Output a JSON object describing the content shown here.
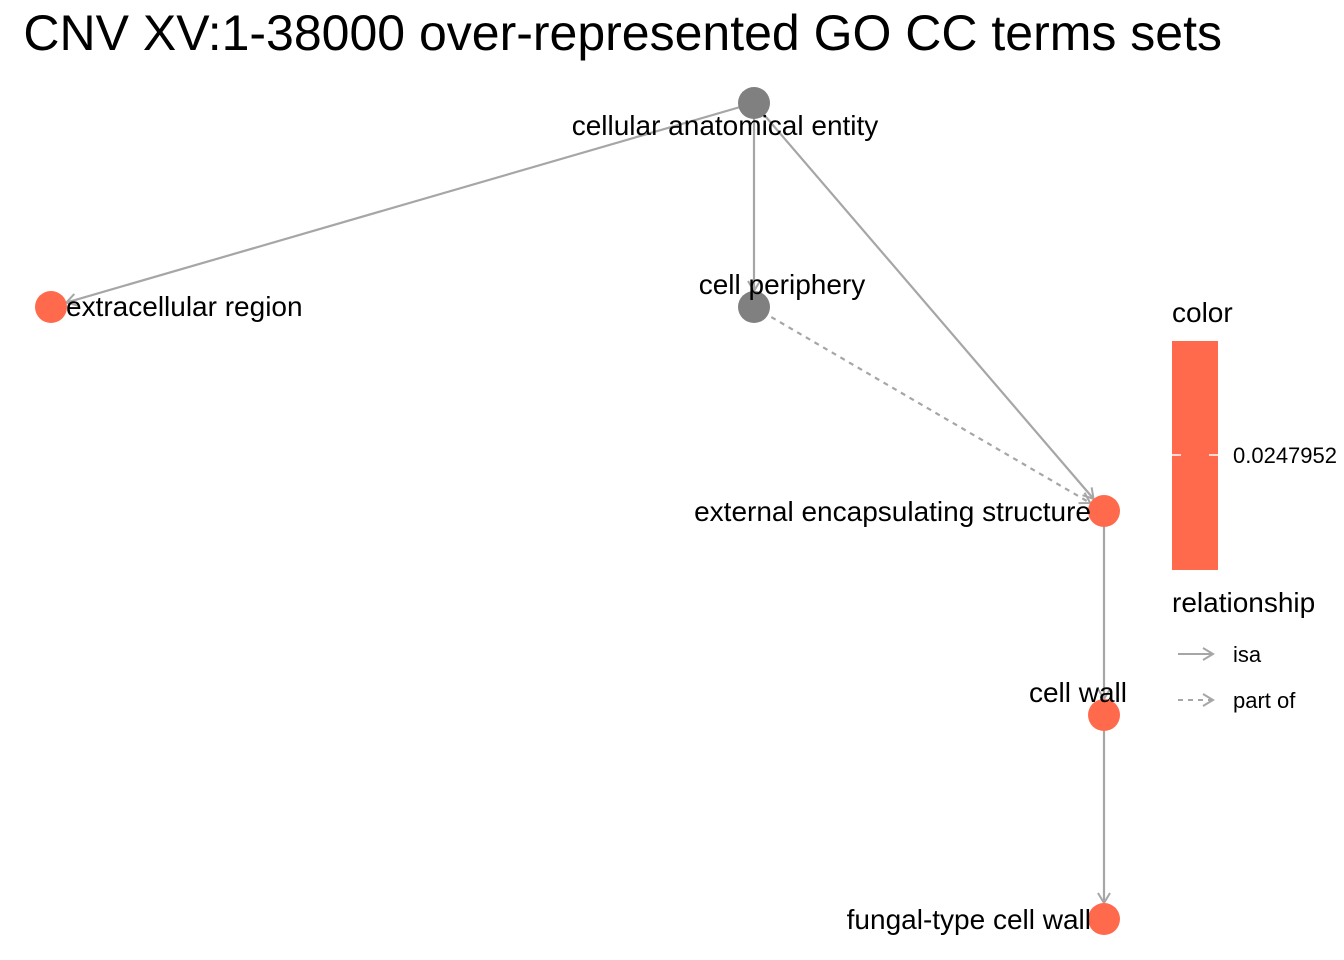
{
  "title": "CNV XV:1-38000 over-represented GO CC terms sets",
  "nodes": [
    {
      "id": "n1",
      "label": "cellular anatomical entity",
      "status": "background"
    },
    {
      "id": "n2",
      "label": "extracellular region",
      "status": "significant"
    },
    {
      "id": "n3",
      "label": "cell periphery",
      "status": "background"
    },
    {
      "id": "n4",
      "label": "external encapsulating structure",
      "status": "significant"
    },
    {
      "id": "n5",
      "label": "cell wall",
      "status": "significant"
    },
    {
      "id": "n6",
      "label": "fungal-type cell wall",
      "status": "significant"
    }
  ],
  "edges": [
    {
      "from": "n1",
      "to": "n2",
      "relationship": "isa"
    },
    {
      "from": "n1",
      "to": "n3",
      "relationship": "isa"
    },
    {
      "from": "n1",
      "to": "n4",
      "relationship": "isa"
    },
    {
      "from": "n3",
      "to": "n4",
      "relationship": "part of"
    },
    {
      "from": "n4",
      "to": "n5",
      "relationship": "isa"
    },
    {
      "from": "n5",
      "to": "n6",
      "relationship": "isa"
    }
  ],
  "legend": {
    "color_title": "color",
    "color_value": "0.0247952",
    "relationship_title": "relationship",
    "isa_label": "isa",
    "partof_label": "part of"
  },
  "colors": {
    "significant": "#FF6A4D",
    "background": "#808080",
    "edge": "#A6A6A6"
  }
}
